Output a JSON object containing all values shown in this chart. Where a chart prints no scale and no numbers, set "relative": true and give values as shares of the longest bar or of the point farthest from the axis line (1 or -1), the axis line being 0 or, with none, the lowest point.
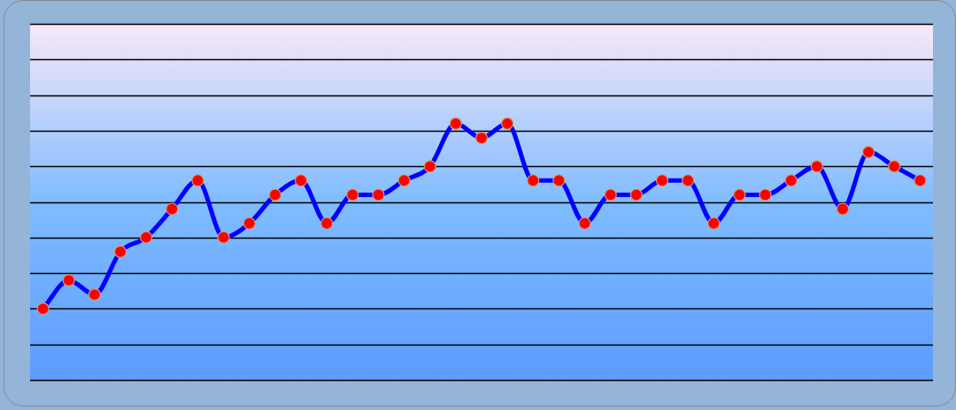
{
  "chart_data": {
    "type": "line",
    "relative": true,
    "grid": "y",
    "legend": false,
    "marker": "circle",
    "line_style": "solid",
    "categories": [
      null,
      null,
      null,
      null,
      null,
      null,
      null,
      null,
      null,
      null,
      null,
      null,
      null,
      null,
      null,
      null,
      null,
      null,
      null,
      null,
      null,
      null,
      null,
      null,
      null,
      null,
      null,
      null,
      null,
      null,
      null,
      null,
      null,
      null,
      null
    ],
    "series": [
      {
        "color": "#0000ff",
        "values": [
          0.278,
          0.389,
          0.333,
          0.5,
          0.556,
          0.667,
          0.778,
          0.556,
          0.611,
          0.722,
          0.778,
          0.611,
          0.722,
          0.722,
          0.778,
          0.833,
          1,
          0.944,
          1,
          0.778,
          0.778,
          0.611,
          0.722,
          0.722,
          0.778,
          0.778,
          0.611,
          0.722,
          0.722,
          0.778,
          0.833,
          0.667,
          0.889,
          0.833,
          0.778
        ]
      }
    ]
  }
}
